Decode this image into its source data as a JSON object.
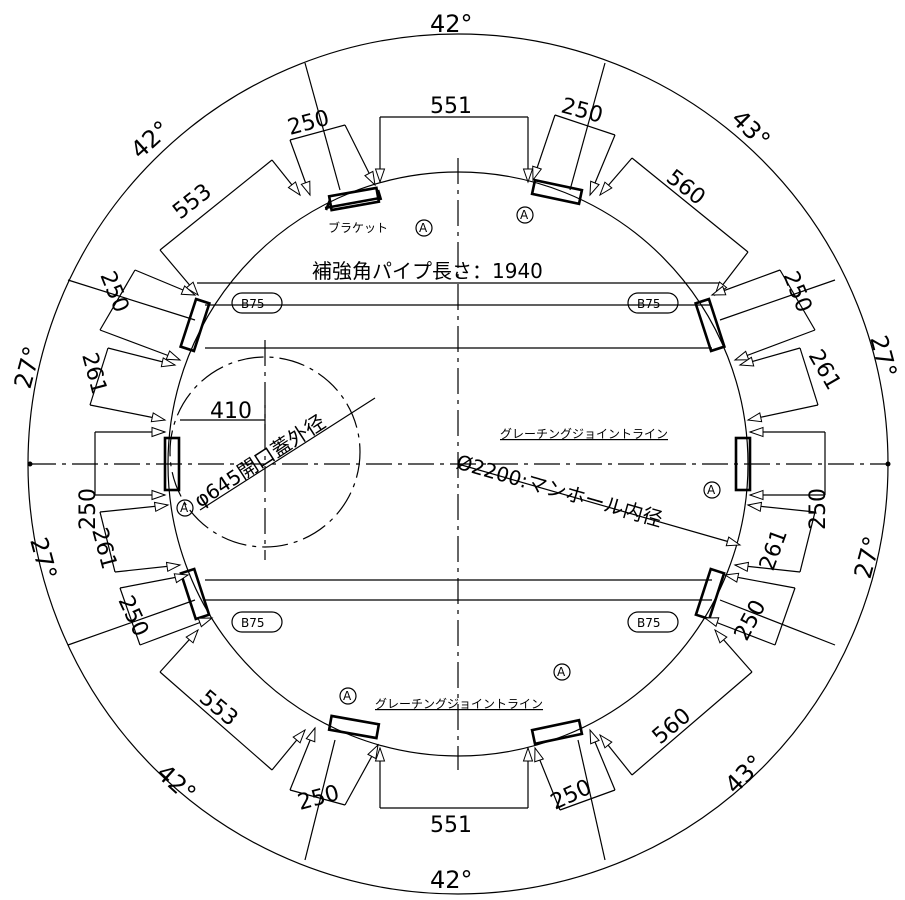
{
  "angles": {
    "top": "42°",
    "top_left": "42°",
    "top_right": "43°",
    "left_upper": "27°",
    "right_upper": "27°",
    "left_lower": "27°",
    "right_lower": "27°",
    "bottom_left": "42°",
    "bottom_right": "43°",
    "bottom": "42°"
  },
  "dimensions": {
    "top_span": "551",
    "bottom_span": "551",
    "bracket_top_left": "250",
    "bracket_top_right": "250",
    "bracket_bottom_left": "250",
    "bracket_bottom_right": "250",
    "bracket_left_upper": "250",
    "bracket_right_upper": "250",
    "bracket_left_lower": "250",
    "bracket_right_lower": "250",
    "bracket_left": "250",
    "bracket_right": "250",
    "gap_top_left": "553",
    "gap_bottom_left": "553",
    "gap_top_right": "560",
    "gap_bottom_right": "560",
    "gap_left_upper": "261",
    "gap_left_lower": "261",
    "gap_right_upper": "261",
    "gap_right_lower": "261",
    "opening_offset": "410"
  },
  "labels": {
    "bracket": "ブラケット",
    "marker_a": "A",
    "b75": "B75",
    "pipe_length": "補強角パイプ長さ：1940",
    "opening_diameter": "φ645開口蓋外径",
    "manhole_diameter": "Ø2200:マンホール内径",
    "grating_joint_right": "グレーチングジョイントライン",
    "grating_joint_bottom": "グレーチングジョイントライン"
  }
}
